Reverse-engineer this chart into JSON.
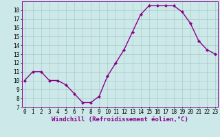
{
  "x": [
    0,
    1,
    2,
    3,
    4,
    5,
    6,
    7,
    8,
    9,
    10,
    11,
    12,
    13,
    14,
    15,
    16,
    17,
    18,
    19,
    20,
    21,
    22,
    23
  ],
  "y": [
    10,
    11,
    11,
    10,
    10,
    9.5,
    8.5,
    7.5,
    7.5,
    8.2,
    10.5,
    12,
    13.5,
    15.5,
    17.5,
    18.5,
    18.5,
    18.5,
    18.5,
    17.8,
    16.5,
    14.5,
    13.5,
    13
  ],
  "line_color": "#880088",
  "bg_color": "#cce8e8",
  "grid_color": "#aacccc",
  "axis_label": "Windchill (Refroidissement éolien,°C)",
  "ylim": [
    7,
    18.5
  ],
  "xlim": [
    -0.3,
    23.3
  ],
  "yticks": [
    7,
    8,
    9,
    10,
    11,
    12,
    13,
    14,
    15,
    16,
    17,
    18
  ],
  "xticks": [
    0,
    1,
    2,
    3,
    4,
    5,
    6,
    7,
    8,
    9,
    10,
    11,
    12,
    13,
    14,
    15,
    16,
    17,
    18,
    19,
    20,
    21,
    22,
    23
  ],
  "tick_fontsize": 5.5,
  "label_fontsize": 6.5,
  "line_width": 1.0,
  "marker_size": 2.2
}
